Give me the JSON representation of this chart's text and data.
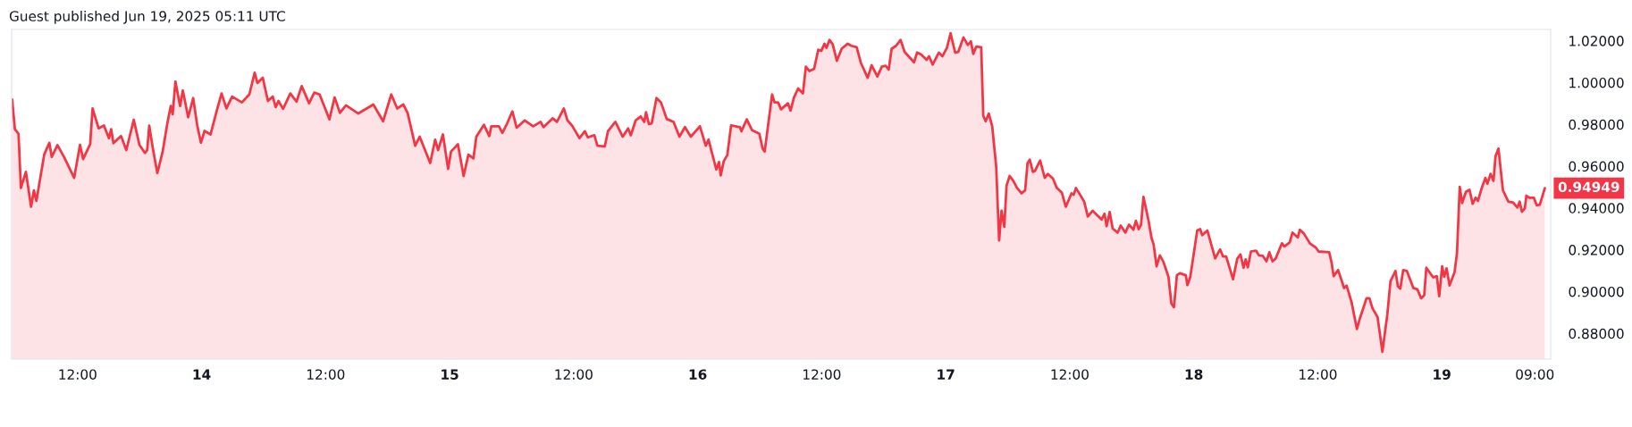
{
  "chart_data": {
    "type": "area",
    "title": "Guest published Jun 19, 2025 05:11 UTC",
    "xlim": [
      "2025-06-13T05:37",
      "2025-06-19T10:32"
    ],
    "xticks": [
      {
        "value": "2025-06-13T12:00",
        "label": "12:00"
      },
      {
        "value": "2025-06-14T00:00",
        "label": "14"
      },
      {
        "value": "2025-06-14T12:00",
        "label": "12:00"
      },
      {
        "value": "2025-06-15T00:00",
        "label": "15"
      },
      {
        "value": "2025-06-15T12:00",
        "label": "12:00"
      },
      {
        "value": "2025-06-16T00:00",
        "label": "16"
      },
      {
        "value": "2025-06-16T12:00",
        "label": "12:00"
      },
      {
        "value": "2025-06-17T00:00",
        "label": "17"
      },
      {
        "value": "2025-06-17T12:00",
        "label": "12:00"
      },
      {
        "value": "2025-06-18T00:00",
        "label": "18"
      },
      {
        "value": "2025-06-18T12:00",
        "label": "12:00"
      },
      {
        "value": "2025-06-19T00:00",
        "label": "19"
      },
      {
        "value": "2025-06-19T09:00",
        "label": "09:00"
      }
    ],
    "ylim": [
      0.8677,
      1.0254
    ],
    "yticks": [
      {
        "value": 0.88,
        "label": "0.88000"
      },
      {
        "value": 0.9,
        "label": "0.90000"
      },
      {
        "value": 0.92,
        "label": "0.92000"
      },
      {
        "value": 0.94,
        "label": "0.94000"
      },
      {
        "value": 0.96,
        "label": "0.96000"
      },
      {
        "value": 0.98,
        "label": "0.98000"
      },
      {
        "value": 1.0,
        "label": "1.00000"
      },
      {
        "value": 1.02,
        "label": "1.02000"
      }
    ],
    "annotations": [
      {
        "text": "0.94949",
        "x": "2025-06-19T09:58",
        "y": 0.94949
      }
    ],
    "series": [
      {
        "color": "#f23645",
        "x": [
          "2025-06-13T05:40",
          "2025-06-13T05:56",
          "2025-06-13T06:17",
          "2025-06-13T06:31",
          "2025-06-13T07:00",
          "2025-06-13T07:30",
          "2025-06-13T07:46",
          "2025-06-13T08:01",
          "2025-06-13T08:46",
          "2025-06-13T09:16",
          "2025-06-13T09:30",
          "2025-06-13T10:03",
          "2025-06-13T10:43",
          "2025-06-13T11:40",
          "2025-06-13T12:14",
          "2025-06-13T12:32",
          "2025-06-13T13:13",
          "2025-06-13T13:27",
          "2025-06-13T14:02",
          "2025-06-13T14:33",
          "2025-06-13T15:02",
          "2025-06-13T15:15",
          "2025-06-13T15:28",
          "2025-06-13T16:12",
          "2025-06-13T16:43",
          "2025-06-13T17:26",
          "2025-06-13T17:59",
          "2025-06-13T18:31",
          "2025-06-13T18:44",
          "2025-06-13T18:56",
          "2025-06-13T19:17",
          "2025-06-13T19:43",
          "2025-06-13T20:14",
          "2025-06-13T20:41",
          "2025-06-13T21:01",
          "2025-06-13T21:12",
          "2025-06-13T21:28",
          "2025-06-13T21:55",
          "2025-06-13T22:11",
          "2025-06-13T22:42",
          "2025-06-13T23:11",
          "2025-06-13T23:34",
          "2025-06-13T23:56",
          "2025-06-14T00:17",
          "2025-06-14T00:52",
          "2025-06-14T01:27",
          "2025-06-14T01:56",
          "2025-06-14T02:24",
          "2025-06-14T02:57",
          "2025-06-14T03:54",
          "2025-06-14T04:37",
          "2025-06-14T05:08",
          "2025-06-14T05:24",
          "2025-06-14T05:55",
          "2025-06-14T06:25",
          "2025-06-14T06:53",
          "2025-06-14T07:10",
          "2025-06-14T07:26",
          "2025-06-14T07:53",
          "2025-06-14T08:35",
          "2025-06-14T09:11",
          "2025-06-14T09:41",
          "2025-06-14T10:24",
          "2025-06-14T10:54",
          "2025-06-14T11:25",
          "2025-06-14T12:22",
          "2025-06-14T12:52",
          "2025-06-14T13:23",
          "2025-06-14T13:58",
          "2025-06-14T15:10",
          "2025-06-14T16:37",
          "2025-06-14T17:34",
          "2025-06-14T18:21",
          "2025-06-14T18:56",
          "2025-06-14T19:31",
          "2025-06-14T19:56",
          "2025-06-14T20:40",
          "2025-06-14T21:06",
          "2025-06-14T22:07",
          "2025-06-14T22:36",
          "2025-06-14T22:53",
          "2025-06-14T23:21",
          "2025-06-14T23:51",
          "2025-06-15T00:08",
          "2025-06-15T00:48",
          "2025-06-15T01:21",
          "2025-06-15T01:49",
          "2025-06-15T02:18",
          "2025-06-15T02:35",
          "2025-06-15T03:19",
          "2025-06-15T03:50",
          "2025-06-15T04:02",
          "2025-06-15T04:46",
          "2025-06-15T05:06",
          "2025-06-15T05:34",
          "2025-06-15T06:04",
          "2025-06-15T06:29",
          "2025-06-15T07:16",
          "2025-06-15T08:05",
          "2025-06-15T08:48",
          "2025-06-15T09:05",
          "2025-06-15T09:58",
          "2025-06-15T10:23",
          "2025-06-15T11:03",
          "2025-06-15T11:24",
          "2025-06-15T11:50",
          "2025-06-15T12:34",
          "2025-06-15T13:05",
          "2025-06-15T13:22",
          "2025-06-15T14:00",
          "2025-06-15T14:18",
          "2025-06-15T15:01",
          "2025-06-15T15:19",
          "2025-06-15T16:02",
          "2025-06-15T16:45",
          "2025-06-15T17:16",
          "2025-06-15T17:32",
          "2025-06-15T18:00",
          "2025-06-15T18:29",
          "2025-06-15T18:50",
          "2025-06-15T19:00",
          "2025-06-15T19:17",
          "2025-06-15T19:33",
          "2025-06-15T20:01",
          "2025-06-15T20:27",
          "2025-06-15T21:00",
          "2025-06-15T21:40",
          "2025-06-15T22:14",
          "2025-06-15T22:46",
          "2025-06-15T23:20",
          "2025-06-16T00:13",
          "2025-06-16T00:47",
          "2025-06-16T01:03",
          "2025-06-16T01:48",
          "2025-06-16T02:04",
          "2025-06-16T02:14",
          "2025-06-16T02:31",
          "2025-06-16T02:52",
          "2025-06-16T03:14",
          "2025-06-16T04:05",
          "2025-06-16T04:14",
          "2025-06-16T04:45",
          "2025-06-16T05:16",
          "2025-06-16T05:58",
          "2025-06-16T06:17",
          "2025-06-16T06:29",
          "2025-06-16T07:12",
          "2025-06-16T07:26",
          "2025-06-16T07:47",
          "2025-06-16T08:04",
          "2025-06-16T08:44",
          "2025-06-16T08:59",
          "2025-06-16T09:19",
          "2025-06-16T09:43",
          "2025-06-16T10:11",
          "2025-06-16T10:28",
          "2025-06-16T10:49",
          "2025-06-16T11:16",
          "2025-06-16T11:40",
          "2025-06-16T11:58",
          "2025-06-16T12:16",
          "2025-06-16T12:28",
          "2025-06-16T12:45",
          "2025-06-16T13:04",
          "2025-06-16T13:28",
          "2025-06-16T13:56",
          "2025-06-16T14:31",
          "2025-06-16T14:52",
          "2025-06-16T15:23",
          "2025-06-16T15:47",
          "2025-06-16T16:27",
          "2025-06-16T16:50",
          "2025-06-16T17:23",
          "2025-06-16T17:49",
          "2025-06-16T18:11",
          "2025-06-16T18:29",
          "2025-06-16T18:46",
          "2025-06-16T19:12",
          "2025-06-16T19:38",
          "2025-06-16T20:01",
          "2025-06-16T20:56",
          "2025-06-16T21:14",
          "2025-06-16T21:39",
          "2025-06-16T22:09",
          "2025-06-16T22:23",
          "2025-06-16T22:44",
          "2025-06-16T23:20",
          "2025-06-16T23:41",
          "2025-06-17T00:07",
          "2025-06-17T00:28",
          "2025-06-17T00:55",
          "2025-06-17T01:13",
          "2025-06-17T01:43",
          "2025-06-17T02:08",
          "2025-06-17T02:26",
          "2025-06-17T02:40",
          "2025-06-17T02:57",
          "2025-06-17T03:26",
          "2025-06-17T03:38",
          "2025-06-17T03:52",
          "2025-06-17T04:10",
          "2025-06-17T04:30",
          "2025-06-17T04:53",
          "2025-06-17T05:10",
          "2025-06-17T05:24",
          "2025-06-17T05:40",
          "2025-06-17T05:53",
          "2025-06-17T06:11",
          "2025-06-17T06:32",
          "2025-06-17T06:54",
          "2025-06-17T07:20",
          "2025-06-17T07:41",
          "2025-06-17T07:55",
          "2025-06-17T08:08",
          "2025-06-17T08:26",
          "2025-06-17T08:38",
          "2025-06-17T09:08",
          "2025-06-17T09:35",
          "2025-06-17T09:53",
          "2025-06-17T10:22",
          "2025-06-17T10:45",
          "2025-06-17T11:14",
          "2025-06-17T11:37",
          "2025-06-17T12:10",
          "2025-06-17T12:23",
          "2025-06-17T12:36",
          "2025-06-17T13:24",
          "2025-06-17T13:45",
          "2025-06-17T14:13",
          "2025-06-17T14:37",
          "2025-06-17T15:05",
          "2025-06-17T15:22",
          "2025-06-17T15:34",
          "2025-06-17T15:52",
          "2025-06-17T16:09",
          "2025-06-17T16:38",
          "2025-06-17T16:56",
          "2025-06-17T17:23",
          "2025-06-17T17:44",
          "2025-06-17T18:10",
          "2025-06-17T18:24",
          "2025-06-17T18:40",
          "2025-06-17T18:54",
          "2025-06-17T19:08",
          "2025-06-17T19:37",
          "2025-06-17T19:55",
          "2025-06-17T20:07",
          "2025-06-17T20:24",
          "2025-06-17T20:43",
          "2025-06-17T21:04",
          "2025-06-17T21:33",
          "2025-06-17T21:50",
          "2025-06-17T22:05",
          "2025-06-17T22:22",
          "2025-06-17T22:39",
          "2025-06-17T23:14",
          "2025-06-17T23:23",
          "2025-06-17T23:40",
          "2025-06-18T00:20",
          "2025-06-18T00:37",
          "2025-06-18T00:49",
          "2025-06-18T01:19",
          "2025-06-18T02:04",
          "2025-06-18T02:33",
          "2025-06-18T02:50",
          "2025-06-18T03:08",
          "2025-06-18T03:48",
          "2025-06-18T04:12",
          "2025-06-18T04:31",
          "2025-06-18T04:49",
          "2025-06-18T05:01",
          "2025-06-18T05:14",
          "2025-06-18T05:32",
          "2025-06-18T06:01",
          "2025-06-18T06:19",
          "2025-06-18T06:41",
          "2025-06-18T07:02",
          "2025-06-18T07:19",
          "2025-06-18T07:37",
          "2025-06-18T07:54",
          "2025-06-18T08:32",
          "2025-06-18T08:46",
          "2025-06-18T09:17",
          "2025-06-18T09:33",
          "2025-06-18T10:04",
          "2025-06-18T10:16",
          "2025-06-18T10:39",
          "2025-06-18T11:14",
          "2025-06-18T11:48",
          "2025-06-18T12:05",
          "2025-06-18T13:06",
          "2025-06-18T13:20",
          "2025-06-18T13:32",
          "2025-06-18T13:58",
          "2025-06-18T14:33",
          "2025-06-18T14:47",
          "2025-06-18T15:16",
          "2025-06-18T15:47",
          "2025-06-18T16:03",
          "2025-06-18T16:43",
          "2025-06-18T17:00",
          "2025-06-18T17:17",
          "2025-06-18T17:47",
          "2025-06-18T18:15",
          "2025-06-18T18:44",
          "2025-06-18T19:02",
          "2025-06-18T19:31",
          "2025-06-18T19:45",
          "2025-06-18T19:59",
          "2025-06-18T20:16",
          "2025-06-18T20:37",
          "2025-06-18T21:15",
          "2025-06-18T21:38",
          "2025-06-18T22:00",
          "2025-06-18T22:18",
          "2025-06-18T22:30",
          "2025-06-18T23:10",
          "2025-06-18T23:31",
          "2025-06-18T23:45",
          "2025-06-19T00:02",
          "2025-06-19T00:14",
          "2025-06-19T00:28",
          "2025-06-19T00:45",
          "2025-06-19T01:14",
          "2025-06-19T01:28",
          "2025-06-19T01:44",
          "2025-06-19T01:58",
          "2025-06-19T02:20",
          "2025-06-19T02:41",
          "2025-06-19T02:59",
          "2025-06-19T03:16",
          "2025-06-19T03:30",
          "2025-06-19T03:50",
          "2025-06-19T04:13",
          "2025-06-19T04:25",
          "2025-06-19T04:43",
          "2025-06-19T05:00",
          "2025-06-19T05:12",
          "2025-06-19T05:29",
          "2025-06-19T05:55",
          "2025-06-19T06:27",
          "2025-06-19T06:53",
          "2025-06-19T07:19",
          "2025-06-19T07:32",
          "2025-06-19T07:45",
          "2025-06-19T08:02",
          "2025-06-19T08:11",
          "2025-06-19T08:28",
          "2025-06-19T08:54",
          "2025-06-19T09:11",
          "2025-06-19T09:29",
          "2025-06-19T09:58"
        ],
        "values": [
          0.9919,
          0.9777,
          0.9755,
          0.9496,
          0.9573,
          0.9406,
          0.9484,
          0.9434,
          0.9655,
          0.9712,
          0.9644,
          0.9701,
          0.9641,
          0.9544,
          0.9702,
          0.9634,
          0.9705,
          0.9876,
          0.9781,
          0.9795,
          0.9734,
          0.9777,
          0.971,
          0.9744,
          0.9677,
          0.9822,
          0.9702,
          0.9663,
          0.9677,
          0.9794,
          0.9684,
          0.9567,
          0.967,
          0.9805,
          0.9888,
          0.9848,
          1.0005,
          0.9888,
          0.9962,
          0.9834,
          0.9926,
          0.9798,
          0.9712,
          0.9769,
          0.9752,
          0.9862,
          0.9948,
          0.9876,
          0.9933,
          0.9905,
          0.9943,
          1.0047,
          0.9998,
          1.0023,
          0.9912,
          0.9933,
          0.9883,
          0.9912,
          0.9874,
          0.9948,
          0.9909,
          0.9983,
          0.9901,
          0.9952,
          0.9943,
          0.9824,
          0.9929,
          0.9855,
          0.9891,
          0.9852,
          0.9895,
          0.9815,
          0.9943,
          0.9876,
          0.9895,
          0.9855,
          0.9698,
          0.9741,
          0.9615,
          0.9727,
          0.9677,
          0.9752,
          0.9587,
          0.967,
          0.9705,
          0.9553,
          0.9655,
          0.9637,
          0.9741,
          0.9798,
          0.9744,
          0.9791,
          0.9791,
          0.9759,
          0.9805,
          0.9862,
          0.9784,
          0.9819,
          0.9791,
          0.9812,
          0.9787,
          0.9829,
          0.9812,
          0.9876,
          0.9819,
          0.9795,
          0.9734,
          0.9767,
          0.9738,
          0.9748,
          0.9698,
          0.9695,
          0.9767,
          0.9812,
          0.9741,
          0.9781,
          0.9748,
          0.9819,
          0.9838,
          0.9812,
          0.9858,
          0.9801,
          0.9805,
          0.9926,
          0.9905,
          0.9826,
          0.9812,
          0.9741,
          0.9787,
          0.9741,
          0.9791,
          0.9698,
          0.9727,
          0.9584,
          0.962,
          0.9556,
          0.9623,
          0.9653,
          0.9795,
          0.9787,
          0.9767,
          0.9824,
          0.9772,
          0.9755,
          0.9684,
          0.967,
          0.9943,
          0.9905,
          0.9905,
          0.9872,
          0.9901,
          0.9866,
          0.9929,
          0.9972,
          0.9948,
          1.0076,
          1.0055,
          1.0066,
          1.0157,
          1.0152,
          1.0186,
          1.0166,
          1.0204,
          1.0183,
          1.0104,
          1.0162,
          1.0186,
          1.0176,
          1.0169,
          1.0095,
          1.0023,
          1.0083,
          1.0029,
          1.0076,
          1.008,
          1.0062,
          1.0162,
          1.0176,
          1.0204,
          1.0147,
          1.0097,
          1.0144,
          1.0133,
          1.0109,
          1.0126,
          1.0086,
          1.0143,
          1.0126,
          1.0166,
          1.0236,
          1.0143,
          1.0147,
          1.0216,
          1.018,
          1.0197,
          1.0137,
          1.0172,
          1.0169,
          0.9841,
          0.9815,
          0.9852,
          0.9791,
          0.9598,
          0.9245,
          0.9387,
          0.931,
          0.9506,
          0.9553,
          0.953,
          0.9496,
          0.947,
          0.9484,
          0.9615,
          0.9631,
          0.9573,
          0.9577,
          0.9627,
          0.9544,
          0.9563,
          0.9541,
          0.9496,
          0.9473,
          0.9406,
          0.947,
          0.9463,
          0.9496,
          0.943,
          0.9359,
          0.9387,
          0.9367,
          0.9345,
          0.9373,
          0.9313,
          0.9381,
          0.9302,
          0.9282,
          0.9316,
          0.9282,
          0.932,
          0.9296,
          0.9339,
          0.9299,
          0.932,
          0.9453,
          0.9341,
          0.9256,
          0.9225,
          0.9121,
          0.9173,
          0.9142,
          0.9071,
          0.8943,
          0.8925,
          0.9078,
          0.9088,
          0.9078,
          0.9031,
          0.9071,
          0.9292,
          0.9299,
          0.927,
          0.9292,
          0.9159,
          0.9202,
          0.9168,
          0.9168,
          0.9059,
          0.9156,
          0.9178,
          0.9114,
          0.9154,
          0.9116,
          0.9192,
          0.9196,
          0.9173,
          0.9171,
          0.9145,
          0.9188,
          0.9145,
          0.9156,
          0.9231,
          0.9216,
          0.9235,
          0.9282,
          0.9259,
          0.9296,
          0.9278,
          0.9231,
          0.9211,
          0.9192,
          0.9188,
          0.9139,
          0.9074,
          0.9103,
          0.9017,
          0.9029,
          0.895,
          0.8821,
          0.8868,
          0.8968,
          0.8968,
          0.8921,
          0.8878,
          0.8712,
          0.8893,
          0.9049,
          0.9099,
          0.9025,
          0.9014,
          0.9103,
          0.9099,
          0.9017,
          0.9011,
          0.8968,
          0.8983,
          0.9114,
          0.9068,
          0.9074,
          0.8978,
          0.9121,
          0.9071,
          0.9111,
          0.9029,
          0.9093,
          0.9182,
          0.9501,
          0.9424,
          0.9477,
          0.9487,
          0.942,
          0.9449,
          0.9434,
          0.9491,
          0.9544,
          0.9516,
          0.9563,
          0.953,
          0.9648,
          0.9684,
          0.9484,
          0.943,
          0.9427,
          0.9402,
          0.943,
          0.9382,
          0.9399,
          0.9459,
          0.9449,
          0.9449,
          0.9413,
          0.9416,
          0.94949
        ]
      }
    ]
  }
}
